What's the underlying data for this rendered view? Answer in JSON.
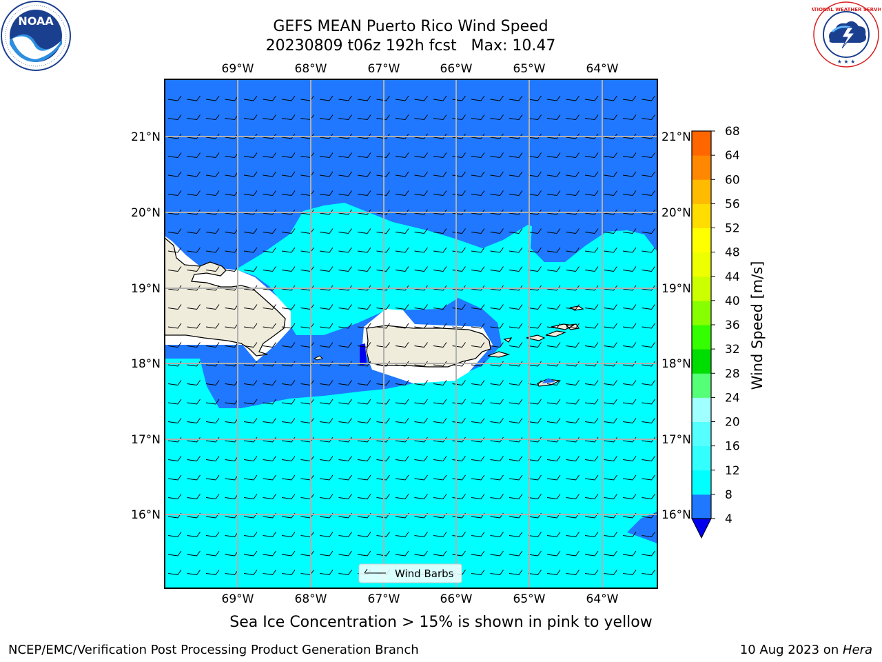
{
  "header": {
    "title_line1": "GEFS MEAN Puerto Rico Wind Speed",
    "title_line2": "20230809 t06z 192h fcst   Max: 10.47"
  },
  "map": {
    "lon_ticks": [
      "69°W",
      "68°W",
      "67°W",
      "66°W",
      "65°W",
      "64°W"
    ],
    "lat_ticks": [
      "21°N",
      "20°N",
      "19°N",
      "18°N",
      "17°N",
      "16°N"
    ],
    "legend_label": "Wind Barbs",
    "colors": {
      "ocean_4_8": "#1f78ff",
      "ocean_8_12": "#00ffff",
      "land": "#efecdc",
      "low_below_4": "#0000ee"
    }
  },
  "colorbar": {
    "label": "Wind Speed [m/s]",
    "ticks": [
      "68",
      "64",
      "60",
      "56",
      "52",
      "48",
      "44",
      "40",
      "36",
      "32",
      "28",
      "24",
      "20",
      "16",
      "12",
      "8",
      "4"
    ],
    "colors_bottom_to_top": [
      "#1f78ff",
      "#00ffff",
      "#33ffff",
      "#55ffff",
      "#a0ffff",
      "#55ff77",
      "#00dd00",
      "#33ff00",
      "#88ff00",
      "#ccff00",
      "#eeff00",
      "#ffff00",
      "#ffdd00",
      "#ffbb00",
      "#ff8800",
      "#ff6600",
      "#ff3300",
      "#ff0000"
    ],
    "extend_color": "#0000ee"
  },
  "caption": "Sea Ice Concentration > 15% is shown in pink to yellow",
  "footer": {
    "org": "NCEP/EMC/Verification Post Processing Product Generation Branch",
    "date": "10 Aug 2023 on ",
    "host": "Hera"
  },
  "logos": {
    "noaa_text": "NOAA",
    "nws_text": "NATIONAL WEATHER SERVICE"
  }
}
